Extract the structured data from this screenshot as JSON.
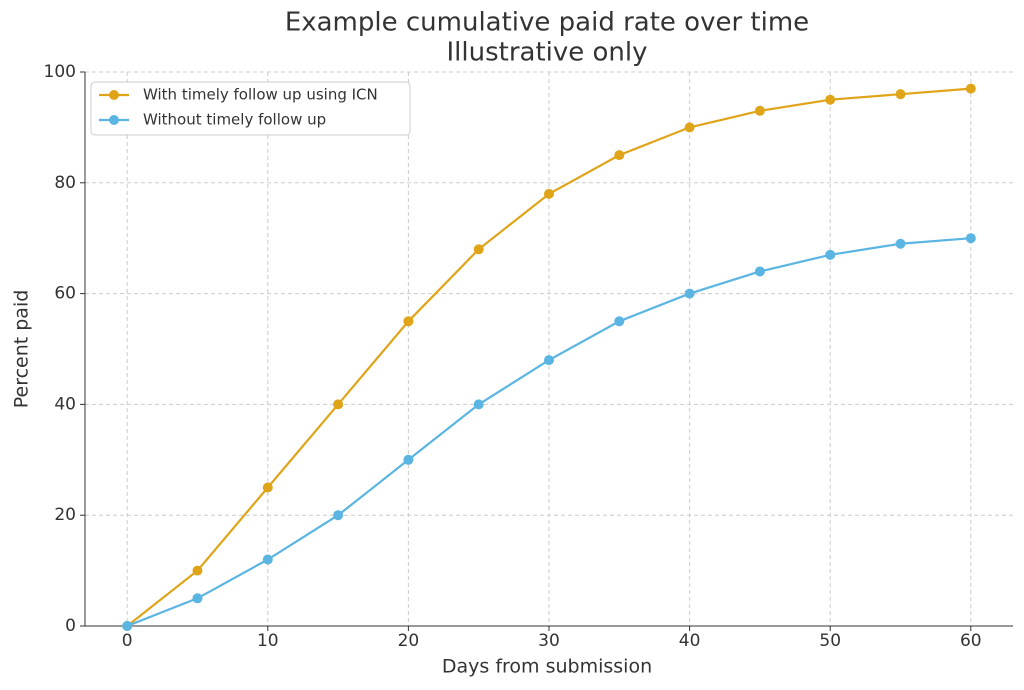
{
  "chart_data": {
    "type": "line",
    "title": "Example cumulative paid rate over time",
    "subtitle": "Illustrative only",
    "x_label": "Days from submission",
    "y_label": "Percent paid",
    "x": [
      0,
      5,
      10,
      15,
      20,
      25,
      30,
      35,
      40,
      45,
      50,
      55,
      60
    ],
    "series": [
      {
        "name": "With timely follow up using ICN",
        "color": "#e0a419",
        "values": [
          0,
          10,
          25,
          40,
          55,
          68,
          78,
          85,
          90,
          93,
          95,
          96,
          97
        ]
      },
      {
        "name": "Without timely follow up",
        "color": "#5bb5e3",
        "values": [
          0,
          5,
          12,
          20,
          30,
          40,
          48,
          55,
          60,
          64,
          67,
          69,
          70
        ]
      }
    ],
    "xlim": [
      -3,
      63
    ],
    "xticks": [
      0,
      10,
      20,
      30,
      40,
      50,
      60
    ],
    "ylim": [
      0,
      100
    ],
    "yticks": [
      0,
      20,
      40,
      60,
      80,
      100
    ],
    "grid": true,
    "legend": "upper-left"
  }
}
